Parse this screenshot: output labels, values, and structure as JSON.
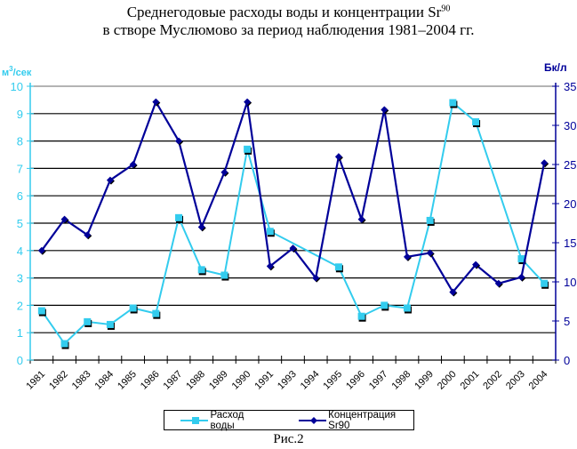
{
  "header": {
    "title_line1": "Среднегодовые расходы воды и концентрации Sr",
    "title_line1_sup": "90",
    "title_line2": "в створе Муслюмово за период наблюдения 1981–2004 гг."
  },
  "caption": "Рис.2",
  "legend": {
    "items": [
      {
        "label": "Расход воды",
        "color": "#33CCEE",
        "marker": "square"
      },
      {
        "label": "Концентрация Sr90",
        "color": "#000099",
        "marker": "diamond"
      }
    ]
  },
  "axes": {
    "left_unit_prefix": "м",
    "left_unit_sup": "3",
    "left_unit_suffix": "/сек",
    "right_unit": "Бк/л",
    "left_color": "#33CCEE",
    "right_color": "#000099"
  },
  "chart_data": {
    "type": "line",
    "title": "Среднегодовые расходы воды и концентрации Sr90 в створе Муслюмово за период наблюдения 1981–2004 гг.",
    "xlabel": "",
    "ylabel": "м3/сек",
    "y2label": "Бк/л",
    "ylim": [
      0,
      10
    ],
    "y2lim": [
      0,
      35
    ],
    "yticks": [
      0,
      1,
      2,
      3,
      4,
      5,
      6,
      7,
      8,
      9,
      10
    ],
    "y2ticks": [
      0,
      5,
      10,
      15,
      20,
      25,
      30,
      35
    ],
    "grid": true,
    "legend_position": "bottom",
    "categories": [
      "1981",
      "1982",
      "1983",
      "1984",
      "1985",
      "1986",
      "1987",
      "1988",
      "1989",
      "1990",
      "1991",
      "1993",
      "1994",
      "1995",
      "1996",
      "1997",
      "1998",
      "1999",
      "2000",
      "2001",
      "2002",
      "2003",
      "2004"
    ],
    "series": [
      {
        "name": "Расход воды",
        "axis": "left",
        "color": "#33CCEE",
        "marker": "square",
        "values": [
          1.8,
          0.6,
          1.4,
          1.3,
          1.9,
          1.7,
          5.2,
          3.3,
          3.1,
          7.7,
          4.7,
          null,
          null,
          3.4,
          1.6,
          2.0,
          1.9,
          5.1,
          9.4,
          8.7,
          null,
          3.7,
          2.8
        ]
      },
      {
        "name": "Концентрация Sr90",
        "axis": "right",
        "color": "#000099",
        "marker": "diamond",
        "values": [
          14,
          18,
          16,
          23,
          25,
          33,
          28,
          17,
          24,
          33,
          12,
          14.3,
          10.5,
          26,
          18,
          32,
          13.2,
          13.7,
          8.7,
          12.2,
          9.8,
          10.6,
          25.2
        ]
      }
    ]
  }
}
